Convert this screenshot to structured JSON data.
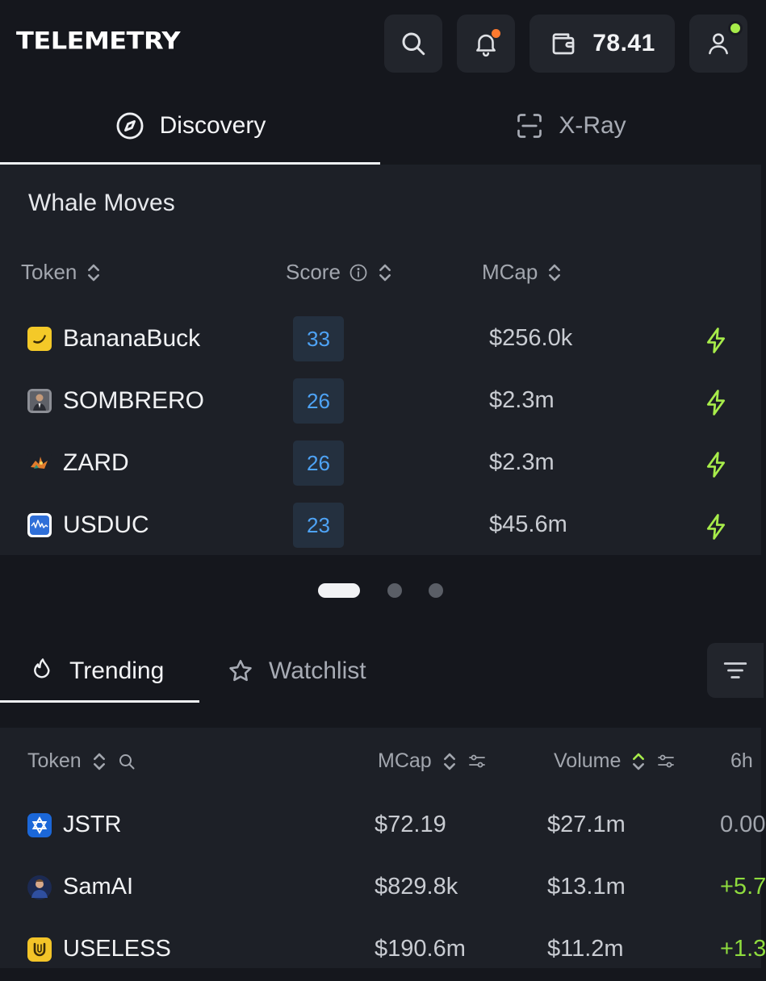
{
  "header": {
    "logo": "TELEMETRY",
    "wallet_balance": "78.41"
  },
  "top_tabs": [
    {
      "label": "Discovery",
      "icon": "compass-icon",
      "active": true
    },
    {
      "label": "X-Ray",
      "icon": "scan-icon",
      "active": false
    }
  ],
  "whale": {
    "title": "Whale Moves",
    "columns": {
      "token": "Token",
      "score": "Score",
      "mcap": "MCap"
    },
    "rows": [
      {
        "name": "BananaBuck",
        "score": "33",
        "mcap": "$256.0k"
      },
      {
        "name": "SOMBRERO",
        "score": "26",
        "mcap": "$2.3m"
      },
      {
        "name": "ZARD",
        "score": "26",
        "mcap": "$2.3m"
      },
      {
        "name": "USDUC",
        "score": "23",
        "mcap": "$45.6m"
      }
    ],
    "pager": {
      "pages": 3,
      "active_page": 1
    }
  },
  "bottom_tabs": [
    {
      "label": "Trending",
      "icon": "flame-icon",
      "active": true
    },
    {
      "label": "Watchlist",
      "icon": "star-icon",
      "active": false
    }
  ],
  "trending": {
    "columns": {
      "token": "Token",
      "mcap": "MCap",
      "volume": "Volume",
      "change": "6h"
    },
    "rows": [
      {
        "name": "JSTR",
        "mcap": "$72.19",
        "volume": "$27.1m",
        "change": "0.00"
      },
      {
        "name": "SamAI",
        "mcap": "$829.8k",
        "volume": "$13.1m",
        "change": "+5.7"
      },
      {
        "name": "USELESS",
        "mcap": "$190.6m",
        "volume": "$11.2m",
        "change": "+1.3"
      }
    ]
  },
  "colors": {
    "background": "#15171d",
    "card": "#1d2027",
    "score_text": "#4ea3f5",
    "bolt": "#a7ec4a",
    "positive": "#8fdc3e",
    "notification_dot": "#ff7a2f",
    "online_dot": "#a7ec4a"
  }
}
